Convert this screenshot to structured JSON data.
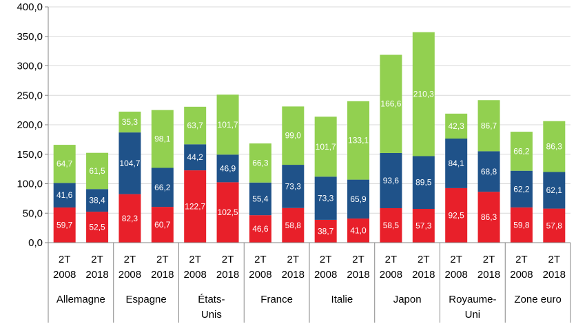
{
  "chart_data": {
    "type": "bar",
    "stacked": true,
    "title": "",
    "xlabel": "",
    "ylabel": "",
    "ylim": [
      0,
      400
    ],
    "yticks": [
      "0,0",
      "50,0",
      "100,0",
      "150,0",
      "200,0",
      "250,0",
      "300,0",
      "350,0",
      "400,0"
    ],
    "grid": true,
    "legend": "none",
    "groups": [
      {
        "name": "Allemagne",
        "categories": [
          [
            "2T",
            "2008"
          ],
          [
            "2T",
            "2018"
          ]
        ]
      },
      {
        "name": "Espagne",
        "categories": [
          [
            "2T",
            "2008"
          ],
          [
            "2T",
            "2018"
          ]
        ]
      },
      {
        "name": "États-Unis",
        "categories": [
          [
            "2T",
            "2008"
          ],
          [
            "2T",
            "2018"
          ]
        ]
      },
      {
        "name": "France",
        "categories": [
          [
            "2T",
            "2008"
          ],
          [
            "2T",
            "2018"
          ]
        ]
      },
      {
        "name": "Italie",
        "categories": [
          [
            "2T",
            "2008"
          ],
          [
            "2T",
            "2018"
          ]
        ]
      },
      {
        "name": "Japon",
        "categories": [
          [
            "2T",
            "2008"
          ],
          [
            "2T",
            "2018"
          ]
        ]
      },
      {
        "name": "Royaume-Uni",
        "categories": [
          [
            "2T",
            "2008"
          ],
          [
            "2T",
            "2018"
          ]
        ]
      },
      {
        "name": "Zone euro",
        "categories": [
          [
            "2T",
            "2008"
          ],
          [
            "2T",
            "2018"
          ]
        ]
      }
    ],
    "series": [
      {
        "color": "#e8202a",
        "values": [
          59.7,
          52.5,
          82.3,
          60.7,
          122.7,
          102.5,
          46.6,
          58.8,
          38.7,
          41.0,
          58.5,
          57.3,
          92.5,
          86.3,
          59.8,
          57.8
        ],
        "labels": [
          "59,7",
          "52,5",
          "82,3",
          "60,7",
          "122,7",
          "102,5",
          "46,6",
          "58,8",
          "38,7",
          "41,0",
          "58,5",
          "57,3",
          "92,5",
          "86,3",
          "59,8",
          "57,8"
        ]
      },
      {
        "color": "#1f5289",
        "values": [
          41.6,
          38.4,
          104.7,
          66.2,
          44.2,
          46.9,
          55.4,
          73.3,
          73.3,
          65.9,
          93.6,
          89.5,
          84.1,
          68.8,
          62.2,
          62.1
        ],
        "labels": [
          "41,6",
          "38,4",
          "104,7",
          "66,2",
          "44,2",
          "46,9",
          "55,4",
          "73,3",
          "73,3",
          "65,9",
          "93,6",
          "89,5",
          "84,1",
          "68,8",
          "62,2",
          "62,1"
        ]
      },
      {
        "color": "#92d050",
        "values": [
          64.7,
          61.5,
          35.3,
          98.1,
          63.7,
          101.7,
          66.3,
          99.0,
          101.7,
          133.1,
          166.6,
          210.3,
          42.3,
          86.7,
          66.2,
          86.3
        ],
        "labels": [
          "64,7",
          "61,5",
          "35,3",
          "98,1",
          "63,7",
          "101,7",
          "66,3",
          "99,0",
          "101,7",
          "133,1",
          "166,6",
          "210,3",
          "42,3",
          "86,7",
          "66,2",
          "86,3"
        ]
      }
    ]
  }
}
